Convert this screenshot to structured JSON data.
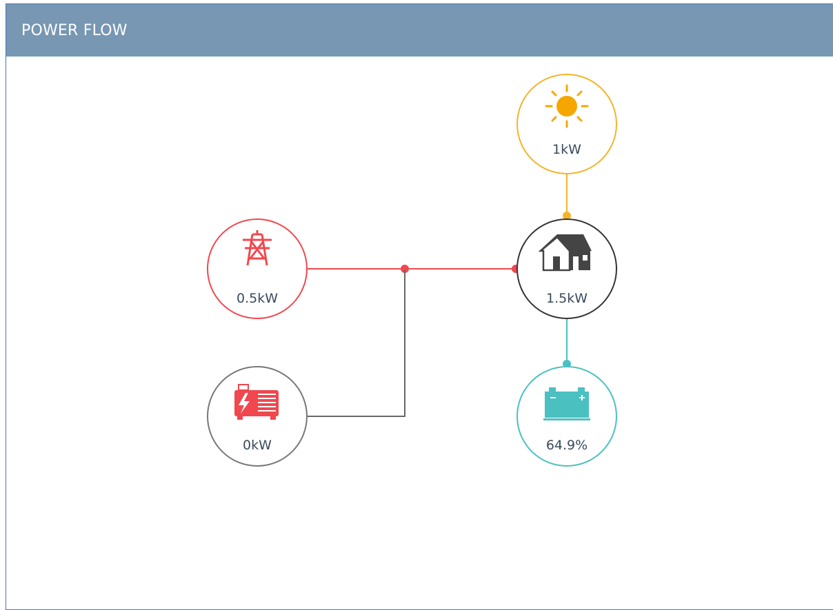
{
  "header": {
    "title": "POWER FLOW"
  },
  "nodes": [
    {
      "label": "1kW"
    },
    {
      "label": "0.5kW"
    },
    {
      "label": "1.5kW"
    },
    {
      "label": "0kW"
    },
    {
      "label": "64.9%"
    }
  ]
}
